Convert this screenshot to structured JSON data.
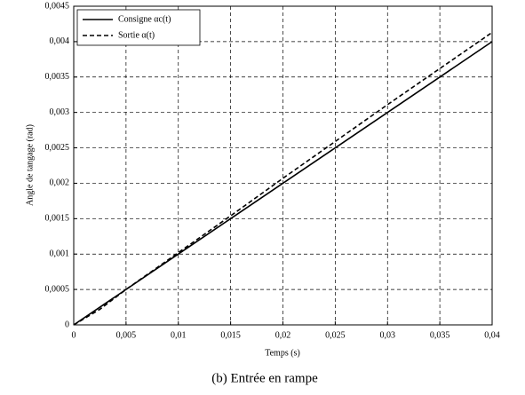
{
  "chart_data": {
    "type": "line",
    "caption": "(b) Entrée en rampe",
    "x_label": "Temps (s)",
    "y_label": "Angle de tangage (rad)",
    "x": [
      0,
      0.0025,
      0.005,
      0.01,
      0.015,
      0.02,
      0.025,
      0.03,
      0.035,
      0.04
    ],
    "series": [
      {
        "name": "Consigne αc(t)",
        "color": "#000000",
        "dash": "solid",
        "values": [
          0,
          0.00025,
          0.0005,
          0.001,
          0.0015,
          0.002,
          0.0025,
          0.003,
          0.0035,
          0.004
        ]
      },
      {
        "name": "Sortie α(t)",
        "color": "#000000",
        "dash": "dashed",
        "values": [
          0,
          0.00022,
          0.0005,
          0.00102,
          0.00154,
          0.00207,
          0.00259,
          0.00311,
          0.00362,
          0.00413
        ]
      }
    ],
    "xlim": [
      0,
      0.04
    ],
    "ylim": [
      0,
      0.0045
    ],
    "xticks": [
      0,
      {
        "value": 0.005,
        "label": "0,005"
      },
      {
        "value": 0.01,
        "label": "0,01"
      },
      {
        "value": 0.015,
        "label": "0,015"
      },
      {
        "value": 0.02,
        "label": "0,02"
      },
      {
        "value": 0.025,
        "label": "0,025"
      },
      {
        "value": 0.03,
        "label": "0,03"
      },
      {
        "value": 0.035,
        "label": "0,035"
      },
      {
        "value": 0.04,
        "label": "0,04"
      }
    ],
    "yticks": [
      0,
      {
        "value": 0.0005,
        "label": "0,0005"
      },
      {
        "value": 0.001,
        "label": "0,001"
      },
      {
        "value": 0.0015,
        "label": "0,0015"
      },
      {
        "value": 0.002,
        "label": "0,002"
      },
      {
        "value": 0.0025,
        "label": "0,0025"
      },
      {
        "value": 0.003,
        "label": "0,003"
      },
      {
        "value": 0.0035,
        "label": "0,0035"
      },
      {
        "value": 0.004,
        "label": "0,004"
      },
      {
        "value": 0.0045,
        "label": "0,0045"
      }
    ],
    "grid": true,
    "legend": "upper left"
  }
}
